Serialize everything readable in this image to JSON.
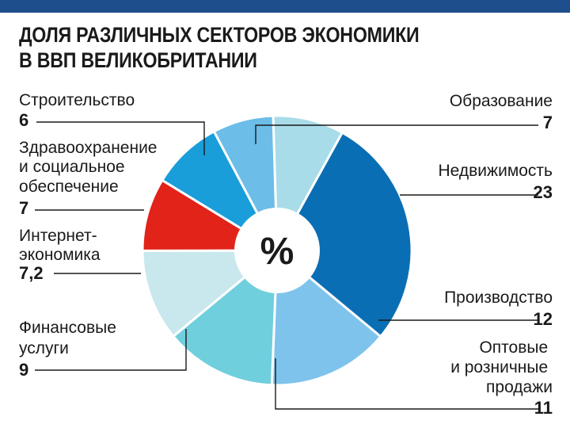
{
  "header": {
    "title_line1": "ДОЛЯ РАЗЛИЧНЫХ СЕКТОРОВ ЭКОНОМИКИ",
    "title_line2": "В ВВП ВЕЛИКОБРИТАНИИ",
    "bar_color": "#1f4e8c"
  },
  "chart_data": {
    "type": "pie",
    "title": "ДОЛЯ РАЗЛИЧНЫХ СЕКТОРОВ ЭКОНОМИКИ В ВВП ВЕЛИКОБРИТАНИИ",
    "center_label": "%",
    "legend": "none",
    "slices": [
      {
        "label": "Образование",
        "value": 7,
        "value_text": "7",
        "color": "#a8dce8"
      },
      {
        "label": "Недвижимость",
        "value": 23,
        "value_text": "23",
        "color": "#0a6eb4"
      },
      {
        "label": "Производство",
        "value": 12,
        "value_text": "12",
        "color": "#7ec3ec"
      },
      {
        "label": "Оптовые и розничные продажи",
        "value": 11,
        "value_text": "11",
        "color": "#6fcfdc"
      },
      {
        "label": "Финансовые услуги",
        "value": 9,
        "value_text": "9",
        "color": "#c9e8ee"
      },
      {
        "label": "Интернет-экономика",
        "value": 7.2,
        "value_text": "7,2",
        "color": "#e2231a"
      },
      {
        "label": "Здравоохранение и социальное обеспечение",
        "value": 7,
        "value_text": "7",
        "color": "#1a9ed9"
      },
      {
        "label": "Строительство",
        "value": 6,
        "value_text": "6",
        "color": "#6cbde8"
      }
    ]
  }
}
